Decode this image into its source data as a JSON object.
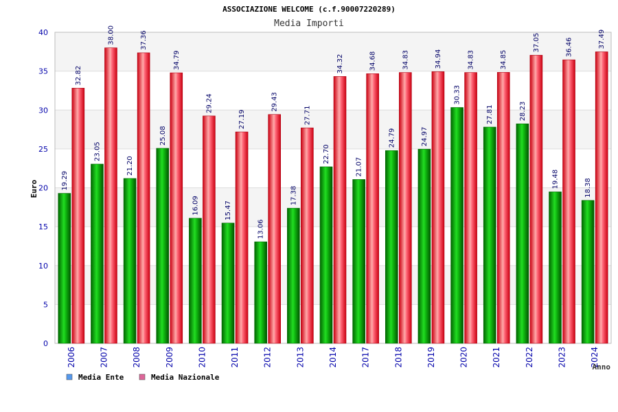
{
  "chart_data": {
    "type": "bar",
    "title": "ASSOCIAZIONE WELCOME (c.f.90007220289)",
    "subtitle": "Media Importi",
    "xlabel": "Anno",
    "ylabel": "Euro",
    "ylim": [
      0,
      40
    ],
    "yticks": [
      0,
      5,
      10,
      15,
      20,
      25,
      30,
      35,
      40
    ],
    "grid": true,
    "legend_position": "bottom-left",
    "categories": [
      "2006",
      "2007",
      "2008",
      "2009",
      "2010",
      "2011",
      "2012",
      "2013",
      "2014",
      "2017",
      "2018",
      "2019",
      "2020",
      "2021",
      "2022",
      "2023",
      "2024"
    ],
    "series": [
      {
        "name": "Media Ente",
        "color": "#00aa00",
        "legend_color": "#5599ee",
        "values": [
          19.29,
          23.05,
          21.2,
          25.08,
          16.09,
          15.47,
          13.06,
          17.38,
          22.7,
          21.07,
          24.79,
          24.97,
          30.33,
          27.81,
          28.23,
          19.48,
          18.38
        ],
        "labels": [
          "19.29",
          "23.05",
          "21.20",
          "25.08",
          "16.09",
          "15.47",
          "13.06",
          "17.38",
          "22.70",
          "21.07",
          "24.79",
          "24.97",
          "30.33",
          "27.81",
          "28.23",
          "19.48",
          "18.38"
        ]
      },
      {
        "name": "Media Nazionale",
        "color": "#ee1122",
        "legend_color": "#dd6699",
        "values": [
          32.82,
          38.0,
          37.36,
          34.79,
          29.24,
          27.19,
          29.43,
          27.71,
          34.32,
          34.68,
          34.83,
          34.94,
          34.83,
          34.85,
          37.05,
          36.46,
          37.49
        ],
        "labels": [
          "32.82",
          "38.00",
          "37.36",
          "34.79",
          "29.24",
          "27.19",
          "29.43",
          "27.71",
          "34.32",
          "34.68",
          "34.83",
          "34.94",
          "34.83",
          "34.85",
          "37.05",
          "36.46",
          "37.49"
        ]
      }
    ]
  }
}
